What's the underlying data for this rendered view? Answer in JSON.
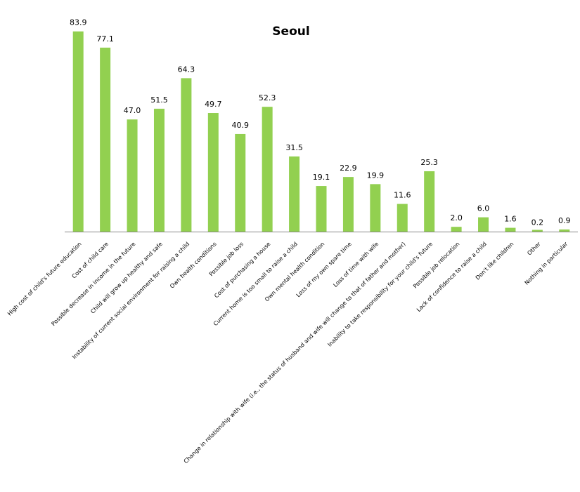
{
  "chart_data": {
    "type": "bar",
    "title": "Seoul",
    "xlabel": "",
    "ylabel": "",
    "ylim": [
      0,
      90
    ],
    "grid": false,
    "legend": "none",
    "bar_color": "#92D050",
    "axis_color": "#868686",
    "categories": [
      "High cost of child's future education",
      "Cost of child care",
      "Possible decrease in income in the future",
      "Child will grow up healthy and safe",
      "Instability of current social environment for raising a child",
      "Own health conditions",
      "Possible job  loss",
      "Cost of purchasing a house",
      "Current home is too small to raise a child",
      "Own mental health condition",
      "Loss of my own spare time",
      "Loss of time with wife",
      "Change in relationship with wife (i.e., the status of husband  and wife will change to that of father and mother)",
      "Inability to take responsibility for your child's future",
      "Possible job  relocation",
      "Lack of confidence  to raise a child",
      "Don't like children",
      "Other",
      "Nothing in particular"
    ],
    "values": [
      83.9,
      77.1,
      47.0,
      51.5,
      64.3,
      49.7,
      40.9,
      52.3,
      31.5,
      19.1,
      22.9,
      19.9,
      11.6,
      25.3,
      2.0,
      6.0,
      1.6,
      0.2,
      0.9
    ],
    "value_labels": [
      "83.9",
      "77.1",
      "47.0",
      "51.5",
      "64.3",
      "49.7",
      "40.9",
      "52.3",
      "31.5",
      "19.1",
      "22.9",
      "19.9",
      "11.6",
      "25.3",
      "2.0",
      "6.0",
      "1.6",
      "0.2",
      "0.9"
    ]
  }
}
